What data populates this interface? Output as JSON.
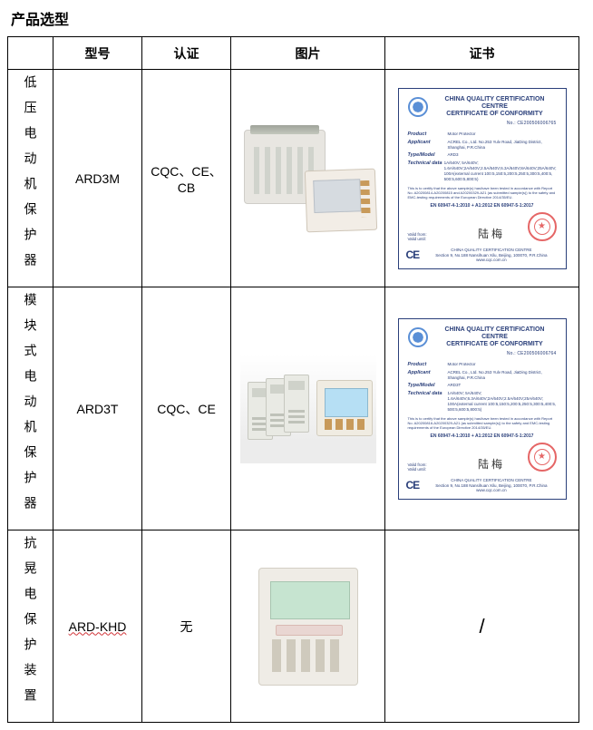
{
  "title": "产品选型",
  "headers": {
    "name_blank": "",
    "model": "型号",
    "cert": "认证",
    "image": "图片",
    "certificate": "证书"
  },
  "rows": [
    {
      "name": "低压电动机保护器",
      "model": "ARD3M",
      "cert": "CQC、CE、CB",
      "cert_doc": {
        "org_line1": "CHINA QUALITY CERTIFICATION CENTRE",
        "org_line2": "CERTIFICATE OF CONFORMITY",
        "cert_no": "No.: CE200506006765",
        "fields": {
          "Product": "Motor Protector",
          "Applicant": "ACREL Co., Ltd.\nNo.253 Yulv Road, JiaDing District, Shanghai, P.R.China",
          "Type/Model": "ARD3",
          "Technical data": "1A/640V; 5A/640V;\n1.6A/640V;2A/640V;2.5A/640V;6.3A/640V;8A/640V;25A/640V;\n100A(external current 100:5,150:5,200:5,250:5,300:5,400:5,\n500:5,600:5,800:5)"
        },
        "note": "This is to certify that the above sample(s) has/have been tested in accordance with Report No. A20200814-A20200815 and A20200329-A21 (as submitted sample(s)) to the safety and EMC-testing requirements of the European Directive 2014/35/EU.",
        "standard": "EN 60947-4-1:2010 + A1:2012\nEN 60947-5-1:2017",
        "valid_label": "Valid from:",
        "valid_until": "Valid until:",
        "signature": "陆 梅",
        "ce": "CE",
        "footer_org": "CHINA QUALITY CERTIFICATION CENTRE",
        "footer_addr": "Section 9, No.188 Nansihuan Xilu, Beijing, 100070, P.R.China   www.cqc.com.cn"
      }
    },
    {
      "name": "模块式电动机保护器",
      "model": "ARD3T",
      "cert": "CQC、CE",
      "cert_doc": {
        "org_line1": "CHINA QUALITY CERTIFICATION CENTRE",
        "org_line2": "CERTIFICATE OF CONFORMITY",
        "cert_no": "No.: CE200506006764",
        "fields": {
          "Product": "Motor Protector",
          "Applicant": "ACREL Co., Ltd.\nNo.253 Yulv Road, JiaDing District, Shanghai, P.R.China",
          "Type/Model": "ARD3T",
          "Technical data": "1A/640V; 5A/640V;\n1.6A/640V;6.3A/640V;2A/640V;2.5A/640V;25A/640V;\n100A(external current 100:5,150:5,200:5,250:5,300:5,400:5,\n500:5,600:5,800:5)"
        },
        "note": "This is to certify that the above sample(s) has/have been tested in accordance with Report No. A20200816-A20200329-A21 (as submitted sample(s)) to the safety and EMC-testing requirements of the European Directive 2014/35/EU.",
        "standard": "EN 60947-4-1:2010 + A1:2012\nEN 60947-5-1:2017",
        "valid_label": "Valid from:",
        "valid_until": "Valid until:",
        "signature": "陆 梅",
        "ce": "CE",
        "footer_org": "CHINA QUALITY CERTIFICATION CENTRE",
        "footer_addr": "Section 9, No.188 Nansihuan Xilu, Beijing, 100070, P.R.China   www.cqc.com.cn"
      }
    },
    {
      "name": "抗晃电保护装置",
      "model": "ARD-KHD",
      "model_wavy": true,
      "cert": "无",
      "cert_doc": null,
      "cert_placeholder": "/"
    }
  ],
  "colors": {
    "border": "#000000",
    "text": "#000000",
    "cert_blue": "#2a3f7a",
    "seal_red": "#d33333",
    "wavy_red": "#d13438",
    "lcd_blue": "#b6dff4"
  }
}
